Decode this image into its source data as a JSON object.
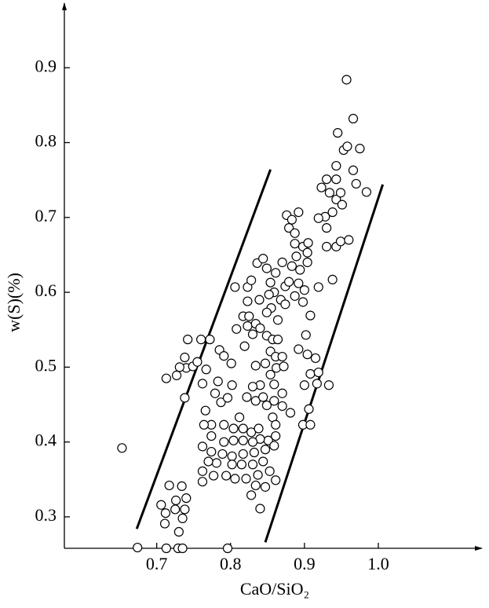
{
  "chart_data": {
    "type": "scatter",
    "x_label": "CaO/SiO₂",
    "y_label": "w(S)(%)",
    "xlim": [
      0.575,
      1.136
    ],
    "ylim": [
      0.258,
      0.98
    ],
    "xticks": [
      0.7,
      0.8,
      0.9,
      {
        "value": 1,
        "label": "1.0"
      }
    ],
    "yticks": [
      0.3,
      0.4,
      0.5,
      0.6,
      0.7,
      0.8,
      0.9
    ],
    "marker_color": "#000000",
    "x": [
      0.653,
      0.674,
      0.713,
      0.727,
      0.74,
      0.731,
      0.742,
      0.76,
      0.738,
      0.749,
      0.755,
      0.738,
      0.767,
      0.762,
      0.713,
      0.729,
      0.735,
      0.796,
      0.717,
      0.706,
      0.712,
      0.711,
      0.726,
      0.734,
      0.74,
      0.725,
      0.738,
      0.735,
      0.73,
      0.772,
      0.785,
      0.766,
      0.774,
      0.764,
      0.779,
      0.787,
      0.783,
      0.796,
      0.802,
      0.801,
      0.791,
      0.806,
      0.823,
      0.808,
      0.817,
      0.825,
      0.823,
      0.819,
      0.83,
      0.823,
      0.834,
      0.839,
      0.828,
      0.836,
      0.844,
      0.849,
      0.854,
      0.859,
      0.852,
      0.861,
      0.87,
      0.855,
      0.868,
      0.864,
      0.874,
      0.874,
      0.849,
      0.84,
      0.849,
      0.857,
      0.854,
      0.864,
      0.861,
      0.847,
      0.862,
      0.872,
      0.87,
      0.854,
      0.84,
      0.834,
      0.83,
      0.822,
      0.834,
      0.844,
      0.849,
      0.859,
      0.859,
      0.87,
      0.87,
      0.857,
      0.812,
      0.804,
      0.791,
      0.817,
      0.828,
      0.838,
      0.851,
      0.84,
      0.83,
      0.817,
      0.804,
      0.791,
      0.774,
      0.762,
      0.774,
      0.789,
      0.802,
      0.817,
      0.832,
      0.847,
      0.859,
      0.844,
      0.83,
      0.815,
      0.802,
      0.781,
      0.77,
      0.762,
      0.762,
      0.777,
      0.794,
      0.806,
      0.821,
      0.837,
      0.853,
      0.847,
      0.834,
      0.828,
      0.84,
      0.861,
      0.861,
      0.861,
      0.876,
      0.883,
      0.879,
      0.887,
      0.892,
      0.887,
      0.898,
      0.889,
      0.904,
      0.905,
      0.883,
      0.894,
      0.904,
      0.879,
      0.892,
      0.9,
      0.887,
      0.898,
      0.908,
      0.902,
      0.892,
      0.904,
      0.915,
      0.908,
      0.919,
      0.881,
      0.898,
      0.908,
      0.906,
      0.9,
      0.928,
      0.93,
      0.919,
      0.938,
      0.943,
      0.951,
      0.934,
      0.923,
      0.93,
      0.943,
      0.949,
      0.943,
      0.953,
      0.945,
      0.966,
      0.958,
      0.975,
      0.966,
      0.97,
      0.984,
      0.957,
      0.93,
      0.943,
      0.949,
      0.96,
      0.919,
      0.938,
      0.917,
      0.933
    ],
    "y": [
      0.392,
      0.259,
      0.485,
      0.489,
      0.499,
      0.5,
      0.537,
      0.537,
      0.513,
      0.501,
      0.507,
      0.459,
      0.497,
      0.478,
      0.258,
      0.258,
      0.258,
      0.258,
      0.342,
      0.316,
      0.305,
      0.291,
      0.322,
      0.341,
      0.325,
      0.31,
      0.31,
      0.298,
      0.28,
      0.537,
      0.523,
      0.442,
      0.423,
      0.423,
      0.465,
      0.453,
      0.481,
      0.459,
      0.476,
      0.505,
      0.515,
      0.607,
      0.607,
      0.551,
      0.568,
      0.568,
      0.588,
      0.528,
      0.544,
      0.555,
      0.558,
      0.59,
      0.616,
      0.639,
      0.645,
      0.632,
      0.613,
      0.6,
      0.597,
      0.626,
      0.64,
      0.579,
      0.59,
      0.563,
      0.608,
      0.584,
      0.573,
      0.552,
      0.542,
      0.537,
      0.521,
      0.537,
      0.514,
      0.505,
      0.499,
      0.501,
      0.514,
      0.49,
      0.476,
      0.502,
      0.474,
      0.46,
      0.455,
      0.46,
      0.449,
      0.455,
      0.477,
      0.465,
      0.448,
      0.433,
      0.433,
      0.418,
      0.423,
      0.418,
      0.413,
      0.418,
      0.402,
      0.404,
      0.4,
      0.402,
      0.402,
      0.4,
      0.408,
      0.394,
      0.387,
      0.384,
      0.381,
      0.384,
      0.386,
      0.39,
      0.395,
      0.374,
      0.37,
      0.37,
      0.37,
      0.372,
      0.374,
      0.361,
      0.347,
      0.355,
      0.355,
      0.351,
      0.351,
      0.356,
      0.361,
      0.34,
      0.342,
      0.329,
      0.311,
      0.349,
      0.423,
      0.408,
      0.703,
      0.697,
      0.686,
      0.679,
      0.707,
      0.665,
      0.661,
      0.648,
      0.653,
      0.666,
      0.635,
      0.63,
      0.64,
      0.614,
      0.612,
      0.603,
      0.595,
      0.587,
      0.569,
      0.543,
      0.524,
      0.517,
      0.512,
      0.491,
      0.493,
      0.439,
      0.423,
      0.423,
      0.444,
      0.476,
      0.701,
      0.686,
      0.699,
      0.707,
      0.724,
      0.717,
      0.733,
      0.74,
      0.751,
      0.751,
      0.733,
      0.769,
      0.79,
      0.813,
      0.832,
      0.795,
      0.792,
      0.763,
      0.745,
      0.734,
      0.884,
      0.661,
      0.661,
      0.668,
      0.67,
      0.607,
      0.617,
      0.478,
      0.476
    ],
    "boundary_lines": [
      {
        "x": [
          0.673,
          0.854
        ],
        "y": [
          0.284,
          0.764
        ]
      },
      {
        "x": [
          0.847,
          1.006
        ],
        "y": [
          0.266,
          0.744
        ]
      }
    ]
  }
}
